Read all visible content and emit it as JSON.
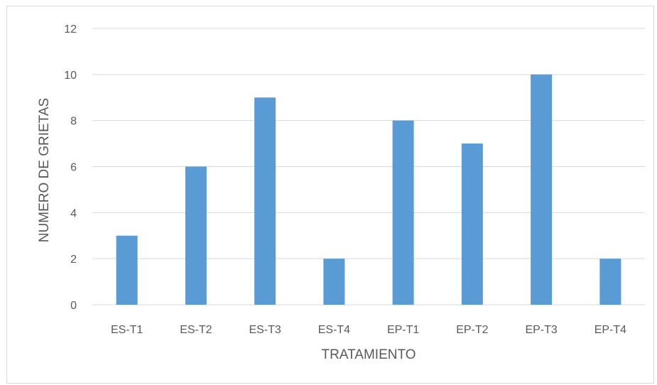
{
  "chart_data": {
    "type": "bar",
    "categories": [
      "ES-T1",
      "ES-T2",
      "ES-T3",
      "ES-T4",
      "EP-T1",
      "EP-T2",
      "EP-T3",
      "EP-T4"
    ],
    "values": [
      3,
      6,
      9,
      2,
      8,
      7,
      10,
      2
    ],
    "title": "",
    "xlabel": "TRATAMIENTO",
    "ylabel": "NUMERO DE GRIETAS",
    "ylim": [
      0,
      12
    ],
    "yticks": [
      "0",
      "2",
      "4",
      "6",
      "8",
      "10",
      "12"
    ],
    "grid": true,
    "legend": "none",
    "bar_color": "#5b9bd5",
    "grid_color": "#d9d9d9",
    "text_color": "#595959"
  }
}
